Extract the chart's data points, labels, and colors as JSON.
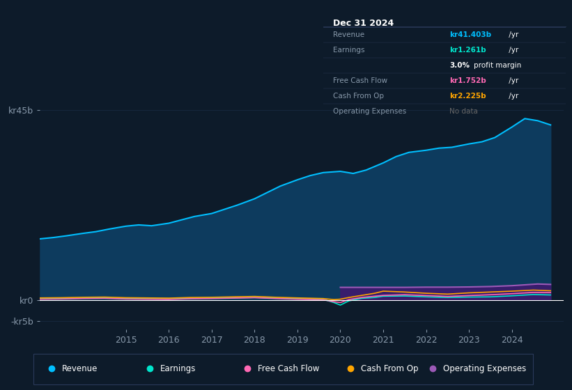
{
  "bg_color": "#0d1b2a",
  "plot_bg_color": "#0d1b2a",
  "grid_color": "#1a2d45",
  "text_color": "#8899aa",
  "revenue_color": "#00bfff",
  "revenue_fill": "#0d3b5e",
  "earnings_color": "#00e5cc",
  "fcf_color": "#ff69b4",
  "cashop_color": "#ffa500",
  "opex_color": "#9b59b6",
  "opex_fill": "#3d1a6e",
  "ylim": [
    -7000000000,
    48000000000
  ],
  "xlim": [
    2013.0,
    2025.2
  ],
  "xtick_positions": [
    2015,
    2016,
    2017,
    2018,
    2019,
    2020,
    2021,
    2022,
    2023,
    2024
  ],
  "xtick_labels": [
    "2015",
    "2016",
    "2017",
    "2018",
    "2019",
    "2020",
    "2021",
    "2022",
    "2023",
    "2024"
  ],
  "ytick_positions": [
    -5000000000,
    0,
    45000000000
  ],
  "ytick_labels": [
    "-kr5b",
    "kr0",
    "kr45b"
  ],
  "legend_items": [
    "Revenue",
    "Earnings",
    "Free Cash Flow",
    "Cash From Op",
    "Operating Expenses"
  ],
  "legend_colors": [
    "#00bfff",
    "#00e5cc",
    "#ff69b4",
    "#ffa500",
    "#9b59b6"
  ],
  "tooltip_bg": "#080e18",
  "tooltip_border": "#2a3a5a",
  "tooltip_title": "Dec 31 2024",
  "tooltip_data": [
    [
      "Revenue",
      "kr41.403b",
      " /yr",
      "#00bfff"
    ],
    [
      "Earnings",
      "kr1.261b",
      " /yr",
      "#00e5cc"
    ],
    [
      "",
      "3.0%",
      " profit margin",
      "#ffffff"
    ],
    [
      "Free Cash Flow",
      "kr1.752b",
      " /yr",
      "#ff69b4"
    ],
    [
      "Cash From Op",
      "kr2.225b",
      " /yr",
      "#ffa500"
    ],
    [
      "Operating Expenses",
      "No data",
      "",
      "#666666"
    ]
  ],
  "revenue_years": [
    2013.0,
    2013.3,
    2013.6,
    2014.0,
    2014.3,
    2014.6,
    2015.0,
    2015.3,
    2015.6,
    2016.0,
    2016.3,
    2016.6,
    2017.0,
    2017.3,
    2017.6,
    2018.0,
    2018.3,
    2018.6,
    2019.0,
    2019.3,
    2019.6,
    2020.0,
    2020.3,
    2020.6,
    2021.0,
    2021.3,
    2021.6,
    2022.0,
    2022.3,
    2022.6,
    2023.0,
    2023.3,
    2023.6,
    2024.0,
    2024.3,
    2024.6,
    2024.9
  ],
  "revenue_vals": [
    14500000000,
    14800000000,
    15200000000,
    15800000000,
    16200000000,
    16800000000,
    17500000000,
    17800000000,
    17600000000,
    18200000000,
    19000000000,
    19800000000,
    20500000000,
    21500000000,
    22500000000,
    24000000000,
    25500000000,
    27000000000,
    28500000000,
    29500000000,
    30200000000,
    30500000000,
    30000000000,
    30800000000,
    32500000000,
    34000000000,
    35000000000,
    35500000000,
    36000000000,
    36200000000,
    37000000000,
    37500000000,
    38500000000,
    41000000000,
    43000000000,
    42500000000,
    41500000000
  ],
  "earnings_years": [
    2013.0,
    2013.5,
    2014.0,
    2014.5,
    2015.0,
    2015.5,
    2016.0,
    2016.5,
    2017.0,
    2017.5,
    2018.0,
    2018.5,
    2019.0,
    2019.6,
    2019.85,
    2020.0,
    2020.2,
    2020.5,
    2020.8,
    2021.0,
    2021.5,
    2022.0,
    2022.5,
    2023.0,
    2023.5,
    2024.0,
    2024.5,
    2024.9
  ],
  "earnings_vals": [
    300000000,
    350000000,
    450000000,
    500000000,
    350000000,
    300000000,
    250000000,
    400000000,
    450000000,
    500000000,
    600000000,
    450000000,
    350000000,
    150000000,
    -600000000,
    -1200000000,
    -200000000,
    400000000,
    600000000,
    900000000,
    950000000,
    750000000,
    600000000,
    700000000,
    750000000,
    1000000000,
    1300000000,
    1200000000
  ],
  "fcf_years": [
    2013.0,
    2013.5,
    2014.0,
    2014.5,
    2015.0,
    2015.5,
    2016.0,
    2016.5,
    2017.0,
    2017.5,
    2018.0,
    2018.5,
    2019.0,
    2019.6,
    2019.85,
    2020.0,
    2020.2,
    2020.5,
    2020.8,
    2021.0,
    2021.5,
    2022.0,
    2022.5,
    2023.0,
    2023.5,
    2024.0,
    2024.5,
    2024.9
  ],
  "fcf_vals": [
    200000000,
    250000000,
    350000000,
    400000000,
    250000000,
    200000000,
    150000000,
    300000000,
    350000000,
    450000000,
    550000000,
    350000000,
    200000000,
    50000000,
    -400000000,
    -600000000,
    100000000,
    600000000,
    900000000,
    1100000000,
    1250000000,
    1050000000,
    850000000,
    1050000000,
    1250000000,
    1500000000,
    1800000000,
    1750000000
  ],
  "cashop_years": [
    2013.0,
    2013.5,
    2014.0,
    2014.5,
    2015.0,
    2015.5,
    2016.0,
    2016.5,
    2017.0,
    2017.5,
    2018.0,
    2018.5,
    2019.0,
    2019.6,
    2019.85,
    2020.0,
    2020.2,
    2020.5,
    2020.8,
    2021.0,
    2021.5,
    2022.0,
    2022.5,
    2023.0,
    2023.5,
    2024.0,
    2024.5,
    2024.9
  ],
  "cashop_vals": [
    500000000,
    550000000,
    650000000,
    700000000,
    550000000,
    500000000,
    450000000,
    600000000,
    650000000,
    750000000,
    850000000,
    650000000,
    500000000,
    350000000,
    100000000,
    200000000,
    600000000,
    1100000000,
    1600000000,
    2100000000,
    1900000000,
    1600000000,
    1400000000,
    1700000000,
    1900000000,
    2100000000,
    2350000000,
    2200000000
  ],
  "opex_years": [
    2020.0,
    2020.2,
    2020.5,
    2020.8,
    2021.0,
    2021.5,
    2022.0,
    2022.5,
    2023.0,
    2023.5,
    2024.0,
    2024.3,
    2024.6,
    2024.9
  ],
  "opex_vals": [
    3000000000,
    3000000000,
    3000000000,
    3000000000,
    3000000000,
    3000000000,
    3050000000,
    3050000000,
    3100000000,
    3200000000,
    3400000000,
    3600000000,
    3800000000,
    3700000000
  ]
}
